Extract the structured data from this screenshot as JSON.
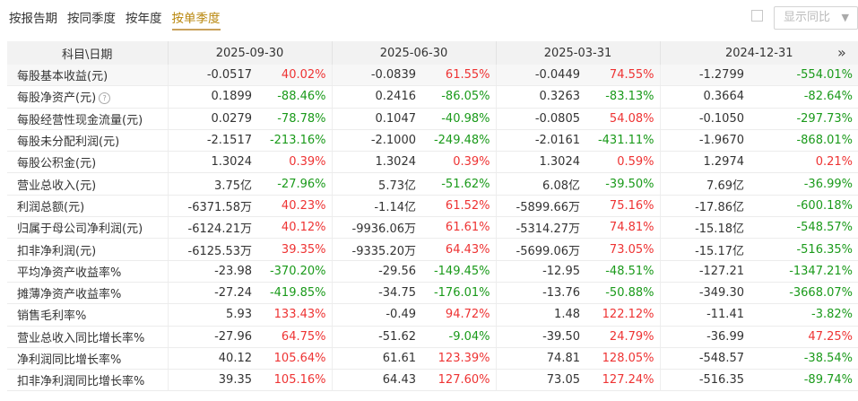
{
  "tabs": [
    "按报告期",
    "按同季度",
    "按年度",
    "按单季度"
  ],
  "active_tab_index": 3,
  "yoy_toggle": {
    "label": "显示同比",
    "checked": false
  },
  "header": {
    "first_col": "科目\\日期",
    "dates": [
      "2025-09-30",
      "2025-06-30",
      "2025-03-31",
      "2024-12-31"
    ]
  },
  "rows": [
    {
      "name": "每股基本收益(元)",
      "cells": [
        [
          "-0.0517",
          "40.02%"
        ],
        [
          "-0.0839",
          "61.55%"
        ],
        [
          "-0.0449",
          "74.55%"
        ],
        [
          "-1.2799",
          "-554.01%"
        ]
      ]
    },
    {
      "name": "每股净资产(元)",
      "help": "?",
      "cells": [
        [
          "0.1899",
          "-88.46%"
        ],
        [
          "0.2416",
          "-86.05%"
        ],
        [
          "0.3263",
          "-83.13%"
        ],
        [
          "0.3664",
          "-82.64%"
        ]
      ]
    },
    {
      "name": "每股经营性现金流量(元)",
      "cells": [
        [
          "0.0279",
          "-78.78%"
        ],
        [
          "0.1047",
          "-40.98%"
        ],
        [
          "-0.0805",
          "54.08%"
        ],
        [
          "-0.1050",
          "-297.73%"
        ]
      ]
    },
    {
      "name": "每股未分配利润(元)",
      "cells": [
        [
          "-2.1517",
          "-213.16%"
        ],
        [
          "-2.1000",
          "-249.48%"
        ],
        [
          "-2.0161",
          "-431.11%"
        ],
        [
          "-1.9670",
          "-868.01%"
        ]
      ]
    },
    {
      "name": "每股公积金(元)",
      "cells": [
        [
          "1.3024",
          "0.39%"
        ],
        [
          "1.3024",
          "0.39%"
        ],
        [
          "1.3024",
          "0.59%"
        ],
        [
          "1.2974",
          "0.21%"
        ]
      ]
    },
    {
      "name": "营业总收入(元)",
      "cells": [
        [
          "3.75亿",
          "-27.96%"
        ],
        [
          "5.73亿",
          "-51.62%"
        ],
        [
          "6.08亿",
          "-39.50%"
        ],
        [
          "7.69亿",
          "-36.99%"
        ]
      ]
    },
    {
      "name": "利润总额(元)",
      "cells": [
        [
          "-6371.58万",
          "40.23%"
        ],
        [
          "-1.14亿",
          "61.52%"
        ],
        [
          "-5899.66万",
          "75.16%"
        ],
        [
          "-17.86亿",
          "-600.18%"
        ]
      ]
    },
    {
      "name": "归属于母公司净利润(元)",
      "cells": [
        [
          "-6124.21万",
          "40.12%"
        ],
        [
          "-9936.06万",
          "61.61%"
        ],
        [
          "-5314.27万",
          "74.81%"
        ],
        [
          "-15.18亿",
          "-548.57%"
        ]
      ]
    },
    {
      "name": "扣非净利润(元)",
      "cells": [
        [
          "-6125.53万",
          "39.35%"
        ],
        [
          "-9335.20万",
          "64.43%"
        ],
        [
          "-5699.06万",
          "73.05%"
        ],
        [
          "-15.17亿",
          "-516.35%"
        ]
      ]
    },
    {
      "name": "平均净资产收益率%",
      "cells": [
        [
          "-23.98",
          "-370.20%"
        ],
        [
          "-29.56",
          "-149.45%"
        ],
        [
          "-12.95",
          "-48.51%"
        ],
        [
          "-127.21",
          "-1347.21%"
        ]
      ]
    },
    {
      "name": "摊薄净资产收益率%",
      "cells": [
        [
          "-27.24",
          "-419.85%"
        ],
        [
          "-34.75",
          "-176.01%"
        ],
        [
          "-13.76",
          "-50.88%"
        ],
        [
          "-349.30",
          "-3668.07%"
        ]
      ]
    },
    {
      "name": "销售毛利率%",
      "cells": [
        [
          "5.93",
          "133.43%"
        ],
        [
          "-0.49",
          "94.72%"
        ],
        [
          "1.48",
          "122.12%"
        ],
        [
          "-11.41",
          "-3.82%"
        ]
      ]
    },
    {
      "name": "营业总收入同比增长率%",
      "cells": [
        [
          "-27.96",
          "64.75%"
        ],
        [
          "-51.62",
          "-9.04%"
        ],
        [
          "-39.50",
          "24.79%"
        ],
        [
          "-36.99",
          "47.25%"
        ]
      ]
    },
    {
      "name": "净利润同比增长率%",
      "cells": [
        [
          "40.12",
          "105.64%"
        ],
        [
          "61.61",
          "123.39%"
        ],
        [
          "74.81",
          "128.05%"
        ],
        [
          "-548.57",
          "-38.54%"
        ]
      ]
    },
    {
      "name": "扣非净利润同比增长率%",
      "cells": [
        [
          "39.35",
          "105.16%"
        ],
        [
          "64.43",
          "127.60%"
        ],
        [
          "73.05",
          "127.24%"
        ],
        [
          "-516.35",
          "-89.74%"
        ]
      ]
    }
  ],
  "more_icon": "double-chevron-right-icon",
  "colors": {
    "up": "#e33333",
    "down": "#1a9a1a",
    "active_tab": "#b8860b"
  }
}
